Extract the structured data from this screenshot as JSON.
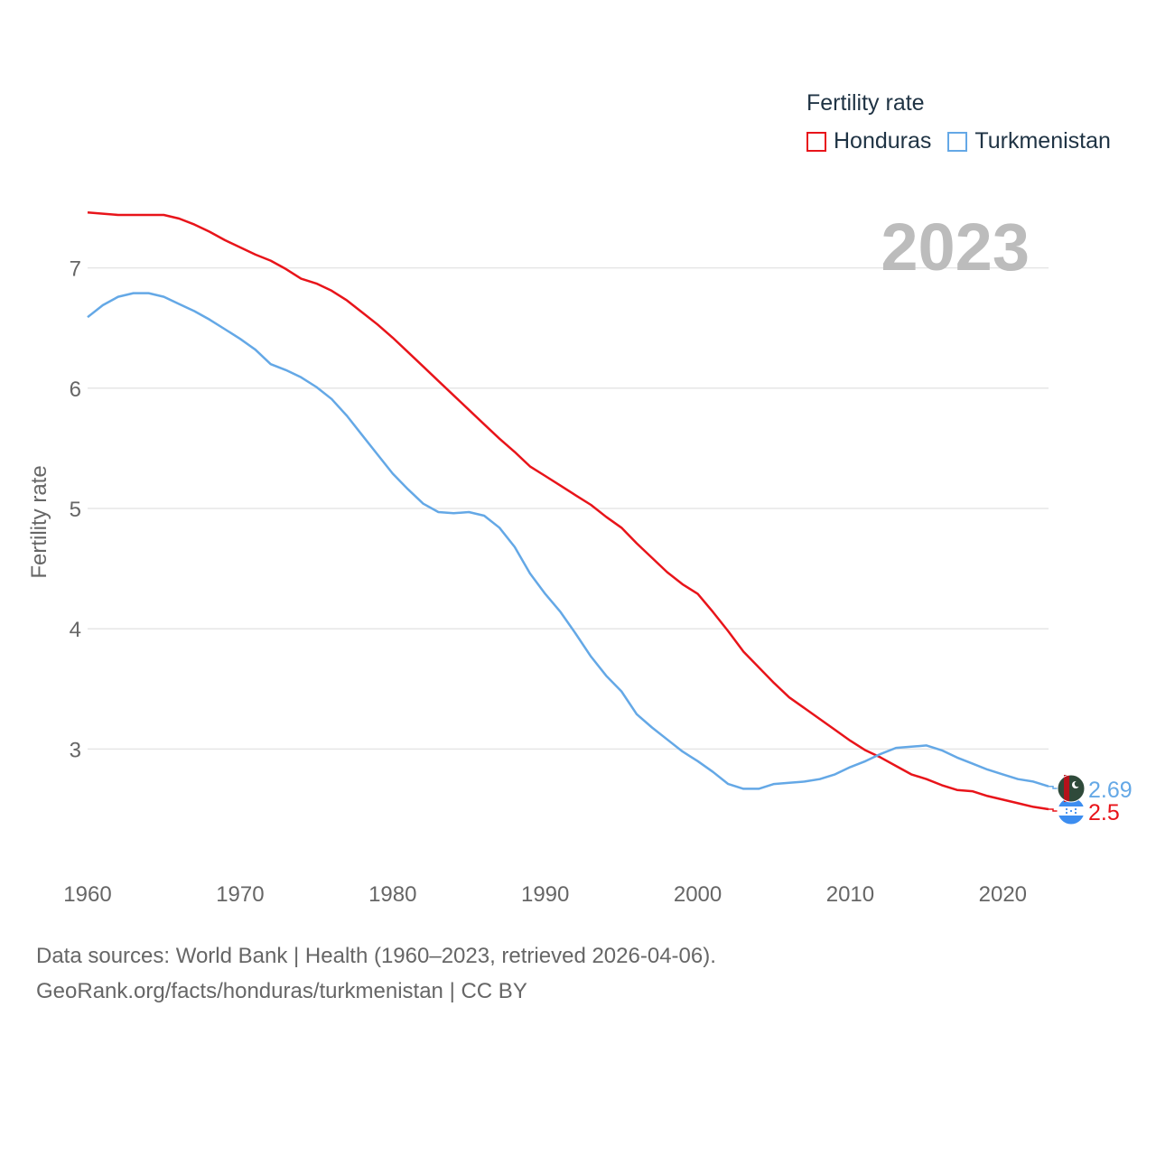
{
  "legend": {
    "title": "Fertility rate",
    "items": [
      {
        "label": "Honduras",
        "color": "#e8141a"
      },
      {
        "label": "Turkmenistan",
        "color": "#64a8e6"
      }
    ]
  },
  "source": {
    "line1": "Data sources: World Bank | Health (1960–2023, retrieved 2026-04-06).",
    "line2": "GeoRank.org/facts/honduras/turkmenistan | CC BY"
  },
  "chart_data": {
    "type": "line",
    "title": "",
    "year_label": "2023",
    "xlabel": "",
    "ylabel": "Fertility rate",
    "xlim": [
      1960,
      2023
    ],
    "ylim": [
      2.17,
      7.65
    ],
    "xticks": [
      1960,
      1970,
      1980,
      1990,
      2000,
      2010,
      2020
    ],
    "yticks": [
      3,
      4,
      5,
      6,
      7
    ],
    "grid": true,
    "legend_position": "top-right",
    "x": [
      1960,
      1961,
      1962,
      1963,
      1964,
      1965,
      1966,
      1967,
      1968,
      1969,
      1970,
      1971,
      1972,
      1973,
      1974,
      1975,
      1976,
      1977,
      1978,
      1979,
      1980,
      1981,
      1982,
      1983,
      1984,
      1985,
      1986,
      1987,
      1988,
      1989,
      1990,
      1991,
      1992,
      1993,
      1994,
      1995,
      1996,
      1997,
      1998,
      1999,
      2000,
      2001,
      2002,
      2003,
      2004,
      2005,
      2006,
      2007,
      2008,
      2009,
      2010,
      2011,
      2012,
      2013,
      2014,
      2015,
      2016,
      2017,
      2018,
      2019,
      2020,
      2021,
      2022,
      2023
    ],
    "series": [
      {
        "name": "Honduras",
        "color": "#e8141a",
        "end_label": "2.5",
        "values": [
          7.46,
          7.45,
          7.44,
          7.44,
          7.44,
          7.44,
          7.41,
          7.36,
          7.3,
          7.23,
          7.17,
          7.11,
          7.06,
          6.99,
          6.91,
          6.87,
          6.81,
          6.73,
          6.63,
          6.53,
          6.42,
          6.3,
          6.18,
          6.06,
          5.94,
          5.82,
          5.7,
          5.58,
          5.47,
          5.35,
          5.27,
          5.19,
          5.11,
          5.03,
          4.93,
          4.84,
          4.71,
          4.59,
          4.47,
          4.37,
          4.29,
          4.14,
          3.98,
          3.81,
          3.68,
          3.55,
          3.43,
          3.34,
          3.25,
          3.16,
          3.07,
          2.99,
          2.93,
          2.86,
          2.79,
          2.75,
          2.7,
          2.66,
          2.65,
          2.61,
          2.58,
          2.55,
          2.52,
          2.5
        ]
      },
      {
        "name": "Turkmenistan",
        "color": "#64a8e6",
        "end_label": "2.69",
        "values": [
          6.59,
          6.69,
          6.76,
          6.79,
          6.79,
          6.76,
          6.7,
          6.64,
          6.57,
          6.49,
          6.41,
          6.32,
          6.2,
          6.15,
          6.09,
          6.01,
          5.91,
          5.77,
          5.61,
          5.45,
          5.29,
          5.16,
          5.04,
          4.97,
          4.96,
          4.97,
          4.94,
          4.84,
          4.68,
          4.46,
          4.29,
          4.14,
          3.96,
          3.77,
          3.61,
          3.48,
          3.29,
          3.18,
          3.08,
          2.98,
          2.9,
          2.81,
          2.71,
          2.67,
          2.67,
          2.71,
          2.72,
          2.73,
          2.75,
          2.79,
          2.85,
          2.9,
          2.96,
          3.01,
          3.02,
          3.03,
          2.99,
          2.93,
          2.88,
          2.83,
          2.79,
          2.75,
          2.73,
          2.69
        ]
      }
    ]
  }
}
